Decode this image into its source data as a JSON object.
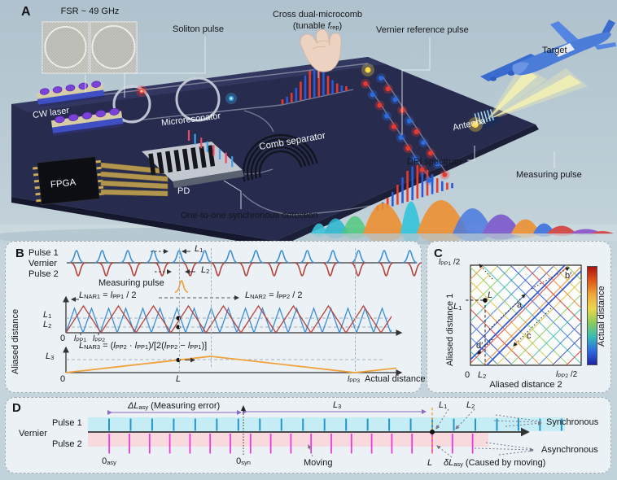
{
  "colors": {
    "pulse1_blue": "#3f8fd2",
    "pulse2_red": "#b5433c",
    "measuring_orange": "#f0a23c",
    "band_pulse1": "#c6edf6",
    "band_pulse2": "#f8d9de",
    "tick_pulse1": "#2596cc",
    "tick_pulse2": "#ea3cdc",
    "board_navy": "#272b4e",
    "annotation_purple": "#8a6cc0",
    "sync_line_orange": "#f0a030"
  },
  "panel_a": {
    "label": "A",
    "fsr": "FSR ~ 49 GHz",
    "soliton": "Soliton pulse",
    "cross_line1": "Cross dual-microcomb",
    "cross_line2": [
      {
        "t": "(tunable "
      },
      {
        "t": "f",
        "c": "v"
      },
      {
        "t": "rep",
        "c": "sb"
      },
      {
        "t": ")"
      }
    ],
    "vernier_ref": "Vernier reference pulse",
    "target": "Target",
    "cw_laser": "CW laser",
    "microresonator": "Microresonator",
    "comb_separator": "Comb separator",
    "fpga": "FPGA",
    "pd": "PD",
    "sync_detect": "One-to-one synchronous detection",
    "dpi": "DPI spectrum",
    "measuring": "Measuring pulse",
    "antenna": "Antenna"
  },
  "panel_b": {
    "label": "B",
    "pulse1": "Pulse 1",
    "vernier": "Vernier",
    "pulse2": "Pulse 2",
    "measuring": "Measuring pulse",
    "L1": [
      {
        "t": "L",
        "c": "v"
      },
      {
        "t": "1",
        "c": "sb"
      }
    ],
    "L2": [
      {
        "t": "L",
        "c": "v"
      },
      {
        "t": "2",
        "c": "sb"
      }
    ],
    "L3": [
      {
        "t": "L",
        "c": "v"
      },
      {
        "t": "3",
        "c": "sb"
      }
    ],
    "nar1": [
      {
        "t": "L",
        "c": "v"
      },
      {
        "t": "NAR1",
        "c": "sb"
      },
      {
        "t": " = "
      },
      {
        "t": "l",
        "c": "v"
      },
      {
        "t": "PP1",
        "c": "sb"
      },
      {
        "t": " / 2"
      }
    ],
    "nar2": [
      {
        "t": "L",
        "c": "v"
      },
      {
        "t": "NAR2",
        "c": "sb"
      },
      {
        "t": " = "
      },
      {
        "t": "l",
        "c": "v"
      },
      {
        "t": "PP2",
        "c": "sb"
      },
      {
        "t": " / 2"
      }
    ],
    "nar3": [
      {
        "t": "L",
        "c": "v"
      },
      {
        "t": "NAR3",
        "c": "sb"
      },
      {
        "t": " = ("
      },
      {
        "t": "l",
        "c": "v"
      },
      {
        "t": "PP2",
        "c": "sb"
      },
      {
        "t": " · "
      },
      {
        "t": "l",
        "c": "v"
      },
      {
        "t": "PP1",
        "c": "sb"
      },
      {
        "t": ")/[2("
      },
      {
        "t": "l",
        "c": "v"
      },
      {
        "t": "PP2",
        "c": "sb"
      },
      {
        "t": " − "
      },
      {
        "t": "l",
        "c": "v"
      },
      {
        "t": "PP1",
        "c": "sb"
      },
      {
        "t": ")]"
      }
    ],
    "ylabel": "Aliased distance",
    "xlabel": "Actual distance",
    "zero": "0",
    "lpp1": [
      {
        "t": "l",
        "c": "v"
      },
      {
        "t": "PP1",
        "c": "sb"
      }
    ],
    "lpp2": [
      {
        "t": "l",
        "c": "v"
      },
      {
        "t": "PP2",
        "c": "sb"
      }
    ],
    "lpp3": [
      {
        "t": "l",
        "c": "v"
      },
      {
        "t": "PP3",
        "c": "sb"
      }
    ],
    "L_tick": [
      {
        "t": "L",
        "c": "v"
      }
    ]
  },
  "panel_c": {
    "label": "C",
    "ylabel": "Aliased distance 1",
    "xlabel": "Aliased distance 2",
    "cbar_label": "Actual distance",
    "ymax": [
      {
        "t": "l",
        "c": "v"
      },
      {
        "t": "PP1",
        "c": "sb"
      },
      {
        "t": " /2"
      }
    ],
    "xmax": [
      {
        "t": "l",
        "c": "v"
      },
      {
        "t": "PP2",
        "c": "sb"
      },
      {
        "t": " /2"
      }
    ],
    "L1": [
      {
        "t": "L",
        "c": "v"
      },
      {
        "t": "1",
        "c": "sb"
      }
    ],
    "L2": [
      {
        "t": "L",
        "c": "v"
      },
      {
        "t": "2",
        "c": "sb"
      }
    ],
    "zero": "0",
    "L": [
      {
        "t": "L",
        "c": "v"
      }
    ],
    "pt_a": "a",
    "pt_b": "b′",
    "pt_c": "c",
    "pt_d": "d′"
  },
  "panel_d": {
    "label": "D",
    "pulse1": "Pulse 1",
    "vernier": "Vernier",
    "pulse2": "Pulse 2",
    "dl_asy": [
      {
        "t": "ΔL",
        "c": "v"
      },
      {
        "t": "asy",
        "c": "sb"
      },
      {
        "t": " (Measuring error)"
      }
    ],
    "L3": [
      {
        "t": "L",
        "c": "v"
      },
      {
        "t": "3",
        "c": "sb"
      }
    ],
    "L1": [
      {
        "t": "L",
        "c": "v"
      },
      {
        "t": "1",
        "c": "sb"
      }
    ],
    "L2": [
      {
        "t": "L",
        "c": "v"
      },
      {
        "t": "2",
        "c": "sb"
      }
    ],
    "zero_asy": [
      {
        "t": "0"
      },
      {
        "t": "asy",
        "c": "sb"
      }
    ],
    "zero_syn": [
      {
        "t": "0"
      },
      {
        "t": "syn",
        "c": "sb"
      }
    ],
    "moving": "Moving",
    "L": [
      {
        "t": "L",
        "c": "v"
      }
    ],
    "delta": [
      {
        "t": "δL",
        "c": "v"
      },
      {
        "t": "asy",
        "c": "sb"
      },
      {
        "t": " (Caused by moving)"
      }
    ],
    "synchronous": "Synchronous",
    "asynchronous": "Asynchronous"
  }
}
